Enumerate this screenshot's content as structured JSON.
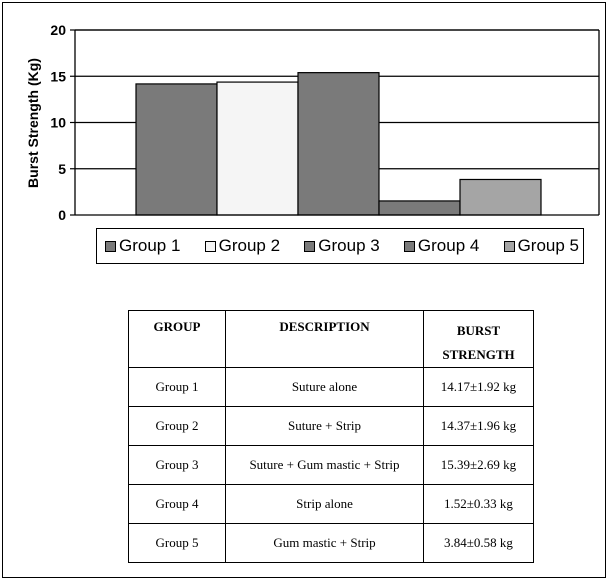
{
  "chart_data": {
    "type": "bar",
    "categories": [
      "Group 1",
      "Group 2",
      "Group 3",
      "Group 4",
      "Group 5"
    ],
    "values": [
      14.17,
      14.37,
      15.39,
      1.52,
      3.84
    ],
    "colors": [
      "#7a7a7a",
      "#f5f5f5",
      "#7a7a7a",
      "#7a7a7a",
      "#a5a5a5"
    ],
    "xlabel": "",
    "ylabel": "Burst Strength (Kg)",
    "ylim": [
      0,
      20
    ],
    "yticks": [
      "0",
      "5",
      "10",
      "15",
      "20"
    ],
    "grid": true,
    "legend_position": "bottom"
  },
  "legend": {
    "items": [
      {
        "label": "Group 1",
        "color": "#7a7a7a"
      },
      {
        "label": "Group 2",
        "color": "#f5f5f5"
      },
      {
        "label": "Group 3",
        "color": "#7a7a7a"
      },
      {
        "label": "Group 4",
        "color": "#7a7a7a"
      },
      {
        "label": "Group 5",
        "color": "#a5a5a5"
      }
    ]
  },
  "table": {
    "headers": {
      "group": "GROUP",
      "description": "DESCRIPTION",
      "burst_line1": "BURST",
      "burst_line2": "STRENGTH"
    },
    "rows": [
      {
        "group": "Group 1",
        "description": "Suture alone",
        "burst": "14.17±1.92 kg"
      },
      {
        "group": "Group 2",
        "description": "Suture + Strip",
        "burst": "14.37±1.96 kg"
      },
      {
        "group": "Group 3",
        "description": "Suture + Gum mastic + Strip",
        "burst": "15.39±2.69 kg"
      },
      {
        "group": "Group 4",
        "description": "Strip alone",
        "burst": "1.52±0.33 kg"
      },
      {
        "group": "Group 5",
        "description": "Gum mastic + Strip",
        "burst": "3.84±0.58 kg"
      }
    ]
  }
}
